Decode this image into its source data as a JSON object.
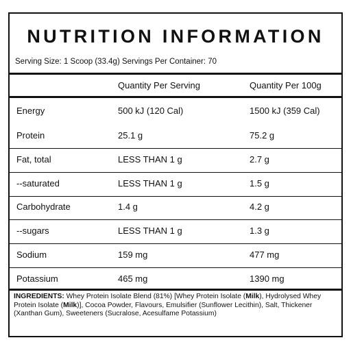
{
  "header": {
    "title": "NUTRITION INFORMATION",
    "serving": "Serving Size: 1 Scoop (33.4g) Servings Per Container: 70"
  },
  "table": {
    "columns": [
      "Quantity Per Serving",
      "Quantity Per 100g"
    ],
    "rows": [
      [
        "Energy",
        "500 kJ (120 Cal)",
        "1500 kJ (359 Cal)"
      ],
      [
        "Protein",
        "25.1 g",
        "75.2 g"
      ],
      [
        "Fat, total",
        "LESS THAN 1 g",
        "2.7 g"
      ],
      [
        "--saturated",
        "LESS THAN 1 g",
        "1.5 g"
      ],
      [
        "Carbohydrate",
        "1.4 g",
        "4.2 g"
      ],
      [
        "--sugars",
        "LESS THAN 1 g",
        "1.3 g"
      ],
      [
        "Sodium",
        "159 mg",
        "477 mg"
      ],
      [
        "Potassium",
        "465 mg",
        "1390 mg"
      ]
    ]
  },
  "ingredients": {
    "parts": [
      {
        "text": "INGREDIENTS:",
        "bold": true
      },
      {
        "text": " Whey Protein Isolate Blend (81%) [Whey Protein Isolate (",
        "bold": false
      },
      {
        "text": "Milk",
        "bold": true
      },
      {
        "text": "), Hydrolysed Whey Protein Isolate (",
        "bold": false
      },
      {
        "text": "Milk",
        "bold": true
      },
      {
        "text": ")], Cocoa Powder, Flavours, Emulsifier (Sunflower Lecithin), Salt, Thickener (Xanthan Gum), Sweeteners (Sucralose, Acesulfame Potassium)",
        "bold": false
      }
    ]
  }
}
